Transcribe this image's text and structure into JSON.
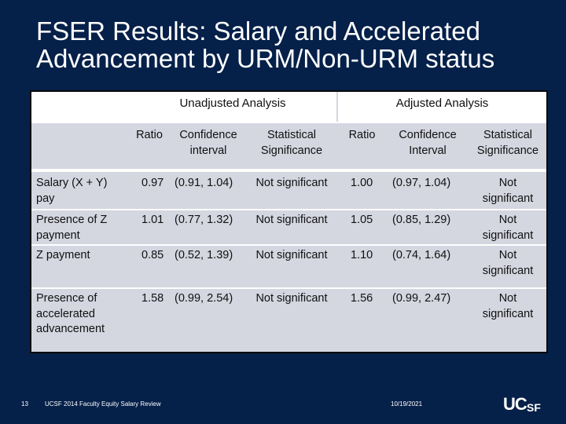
{
  "slide": {
    "title": "FSER Results: Salary and Accelerated Advancement by URM/Non-URM status",
    "page_number": "13",
    "footer_text": "UCSF 2014 Faculty Equity Salary Review",
    "date": "10/19/2021",
    "logo_text": "UCSF",
    "colors": {
      "background": "#052049",
      "table_fill": "#d4d6e0",
      "header_fill": "#ffffff"
    }
  },
  "table": {
    "group_headers": [
      "Unadjusted Analysis",
      "Adjusted Analysis"
    ],
    "column_headers": [
      "",
      "Ratio",
      "Confidence interval",
      "Statistical Significance",
      "Ratio",
      "Confidence Interval",
      "Statistical Significance"
    ],
    "rows": [
      [
        "Salary (X + Y) pay",
        "0.97",
        "(0.91, 1.04)",
        "Not significant",
        "1.00",
        "(0.97, 1.04)",
        "Not significant"
      ],
      [
        "Presence of Z payment",
        "1.01",
        "(0.77, 1.32)",
        "Not significant",
        "1.05",
        "(0.85, 1.29)",
        "Not significant"
      ],
      [
        "Z payment",
        "0.85",
        "(0.52, 1.39)",
        "Not significant",
        "1.10",
        "(0.74, 1.64)",
        "Not significant"
      ],
      [
        "Presence of accelerated advancement",
        "1.58",
        "(0.99, 2.54)",
        "Not significant",
        "1.56",
        "(0.99, 2.47)",
        "Not significant"
      ]
    ]
  }
}
